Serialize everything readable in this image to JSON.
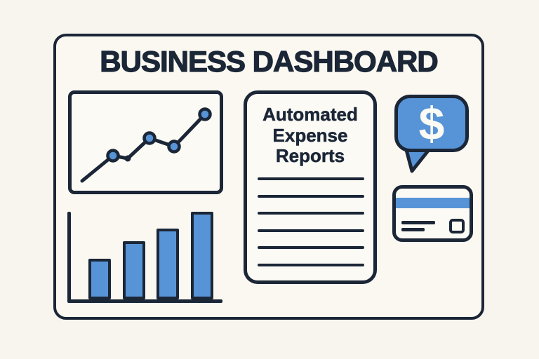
{
  "title": "BUSINESS DASHBOARD",
  "colors": {
    "background": "#f8f5ee",
    "card_fill": "#fbf8f1",
    "panel_fill": "#fcfaf4",
    "ink": "#1b2637",
    "blue": "#5794d7",
    "dollar_white": "#fbfaf4"
  },
  "report_panel": {
    "title_lines": [
      "Automated",
      "Expense",
      "Reports"
    ],
    "rule_count": 6
  },
  "money_bubble": {
    "symbol": "$"
  },
  "chart_data": [
    {
      "type": "line",
      "title": "upward trend line (decorative, unlabeled)",
      "x": [
        15,
        59,
        80,
        111,
        146,
        190
      ],
      "y": [
        124,
        88,
        92,
        63,
        75,
        29
      ],
      "markers": [
        "none",
        "dot",
        "small-dot",
        "dot",
        "dot",
        "dot"
      ],
      "axis_range": {
        "x": [
          0,
          211
        ],
        "y": [
          0,
          138
        ]
      },
      "grid": false,
      "legend": false
    },
    {
      "type": "bar",
      "title": "ascending bars (decorative, unlabeled)",
      "values": [
        46,
        66,
        81,
        100
      ],
      "ylim": [
        0,
        100
      ],
      "grid": false,
      "legend": false
    }
  ]
}
